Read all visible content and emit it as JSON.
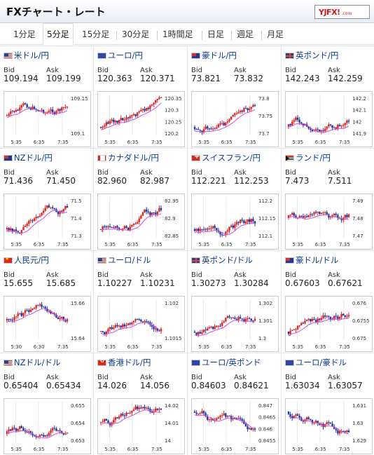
{
  "header": {
    "title": "FXチャート・レート",
    "logo": {
      "main": "YJFX!",
      "sub": ".com"
    }
  },
  "tabs": [
    {
      "label": "1分足",
      "active": false
    },
    {
      "label": "5分足",
      "active": true
    },
    {
      "label": "15分足",
      "active": false
    },
    {
      "label": "30分足",
      "active": false
    },
    {
      "label": "1時間足",
      "active": false
    },
    {
      "label": "日足",
      "active": false
    },
    {
      "label": "週足",
      "active": false
    },
    {
      "label": "月足",
      "active": false
    }
  ],
  "bid_label": "Bid",
  "ask_label": "Ask",
  "colors": {
    "up": "#e02222",
    "down": "#2036a8",
    "ma": "#d84bd8",
    "name": "#0b3a8c"
  },
  "pairs": [
    {
      "name": "米ドル/円",
      "flag": "us",
      "bid": "109.194",
      "ask": "109.199",
      "ticks": [
        "109.15",
        "109.1"
      ],
      "times": [
        "5:35",
        "6:35",
        "7:35"
      ],
      "chart_data": {
        "type": "candlestick",
        "trend": "flat",
        "ma": "flat"
      }
    },
    {
      "name": "ユーロ/円",
      "flag": "eu",
      "bid": "120.363",
      "ask": "120.371",
      "ticks": [
        "120.35",
        "120.3",
        "120.25",
        "120.2"
      ],
      "times": [
        "5:35",
        "6:35",
        "7:35"
      ],
      "chart_data": {
        "type": "candlestick",
        "trend": "up",
        "ma": "up"
      }
    },
    {
      "name": "豪ドル/円",
      "flag": "au",
      "bid": "73.821",
      "ask": "73.832",
      "ticks": [
        "73.8",
        "73.75",
        "73.7"
      ],
      "times": [
        "5:35",
        "6:35",
        "7:35"
      ],
      "chart_data": {
        "type": "candlestick",
        "trend": "up",
        "ma": "up"
      }
    },
    {
      "name": "英ポンド/円",
      "flag": "gb",
      "bid": "142.243",
      "ask": "142.259",
      "ticks": [
        "142.2",
        "142.1",
        "142",
        "141.9"
      ],
      "times": [
        "5:35",
        "6:35",
        "7:35"
      ],
      "chart_data": {
        "type": "candlestick",
        "trend": "up",
        "ma": "up"
      }
    },
    {
      "name": "NZドル/円",
      "flag": "nz",
      "bid": "71.436",
      "ask": "71.450",
      "ticks": [
        "71.5",
        "71.4",
        "71.3"
      ],
      "times": [
        "5:35",
        "6:35",
        "7:35"
      ],
      "chart_data": {
        "type": "candlestick",
        "trend": "up",
        "ma": "up"
      }
    },
    {
      "name": "カナダドル/円",
      "flag": "ca",
      "bid": "82.960",
      "ask": "82.987",
      "ticks": [
        "82.95",
        "82.9",
        "82.85"
      ],
      "times": [
        "5:35",
        "6:35",
        "7:35"
      ],
      "chart_data": {
        "type": "candlestick",
        "trend": "up",
        "ma": "up"
      }
    },
    {
      "name": "スイスフラン/円",
      "flag": "ch",
      "bid": "112.221",
      "ask": "112.253",
      "ticks": [
        "112.2",
        "112.15",
        "112.1"
      ],
      "times": [
        "5:35",
        "6:35",
        "7:35"
      ],
      "chart_data": {
        "type": "candlestick",
        "trend": "up",
        "ma": "up"
      }
    },
    {
      "name": "ランド/円",
      "flag": "za",
      "bid": "7.473",
      "ask": "7.511",
      "ticks": [
        "7.49",
        "7.48",
        "7.47"
      ],
      "times": [
        "5:35",
        "6:35",
        "7:35"
      ],
      "chart_data": {
        "type": "candlestick",
        "trend": "volatile",
        "ma": "up"
      }
    },
    {
      "name": "人民元/円",
      "flag": "cn",
      "bid": "15.655",
      "ask": "15.685",
      "ticks": [
        "15.66",
        "15.64"
      ],
      "times": [
        "5:30",
        "6:30",
        "7:35"
      ],
      "chart_data": {
        "type": "candlestick",
        "trend": "flat",
        "ma": "flat"
      }
    },
    {
      "name": "ユーロ/ドル",
      "flag": "us",
      "bid": "1.10227",
      "ask": "1.10231",
      "ticks": [
        "1.102",
        "1.1015"
      ],
      "times": [
        "5:35",
        "6:35",
        "7:35"
      ],
      "chart_data": {
        "type": "candlestick",
        "trend": "up",
        "ma": "up"
      }
    },
    {
      "name": "英ポンド/ドル",
      "flag": "gb",
      "bid": "1.30273",
      "ask": "1.30284",
      "ticks": [
        "1.302",
        "1.301",
        "1.3"
      ],
      "times": [
        "5:35",
        "6:35",
        "7:35"
      ],
      "chart_data": {
        "type": "candlestick",
        "trend": "up",
        "ma": "up"
      }
    },
    {
      "name": "豪ドル/ドル",
      "flag": "au",
      "bid": "0.67603",
      "ask": "0.67621",
      "ticks": [
        "0.676",
        "0.6755",
        "0.675"
      ],
      "times": [
        "5:35",
        "6:35",
        "7:35"
      ],
      "chart_data": {
        "type": "candlestick",
        "trend": "up",
        "ma": "up"
      }
    },
    {
      "name": "NZドル/ドル",
      "flag": "us",
      "bid": "0.65404",
      "ask": "0.65434",
      "ticks": [
        "0.655",
        "0.654",
        "0.653"
      ],
      "times": [
        "5:35",
        "6:35",
        "7:35"
      ],
      "chart_data": {
        "type": "candlestick",
        "trend": "up",
        "ma": "up"
      }
    },
    {
      "name": "香港ドル/円",
      "flag": "hk",
      "bid": "14.026",
      "ask": "14.056",
      "ticks": [
        "14.02",
        "14.01",
        "14"
      ],
      "times": [
        "5:35",
        "6:35",
        "7:35"
      ],
      "chart_data": {
        "type": "candlestick",
        "trend": "flat",
        "ma": "flat"
      }
    },
    {
      "name": "ユーロ/英ポンド",
      "flag": "eu",
      "bid": "0.84603",
      "ask": "0.84621",
      "ticks": [
        "0.847",
        "0.8465",
        "0.846",
        "0.8455"
      ],
      "times": [
        "5:35",
        "6:35",
        "7:35"
      ],
      "chart_data": {
        "type": "candlestick",
        "trend": "down",
        "ma": "down"
      }
    },
    {
      "name": "ユーロ/豪ドル",
      "flag": "eu",
      "bid": "1.63034",
      "ask": "1.63057",
      "ticks": [
        "1.631",
        "1.63",
        "1.629"
      ],
      "times": [
        "5:35",
        "6:35",
        "7:35"
      ],
      "chart_data": {
        "type": "candlestick",
        "trend": "down",
        "ma": "down"
      }
    }
  ]
}
